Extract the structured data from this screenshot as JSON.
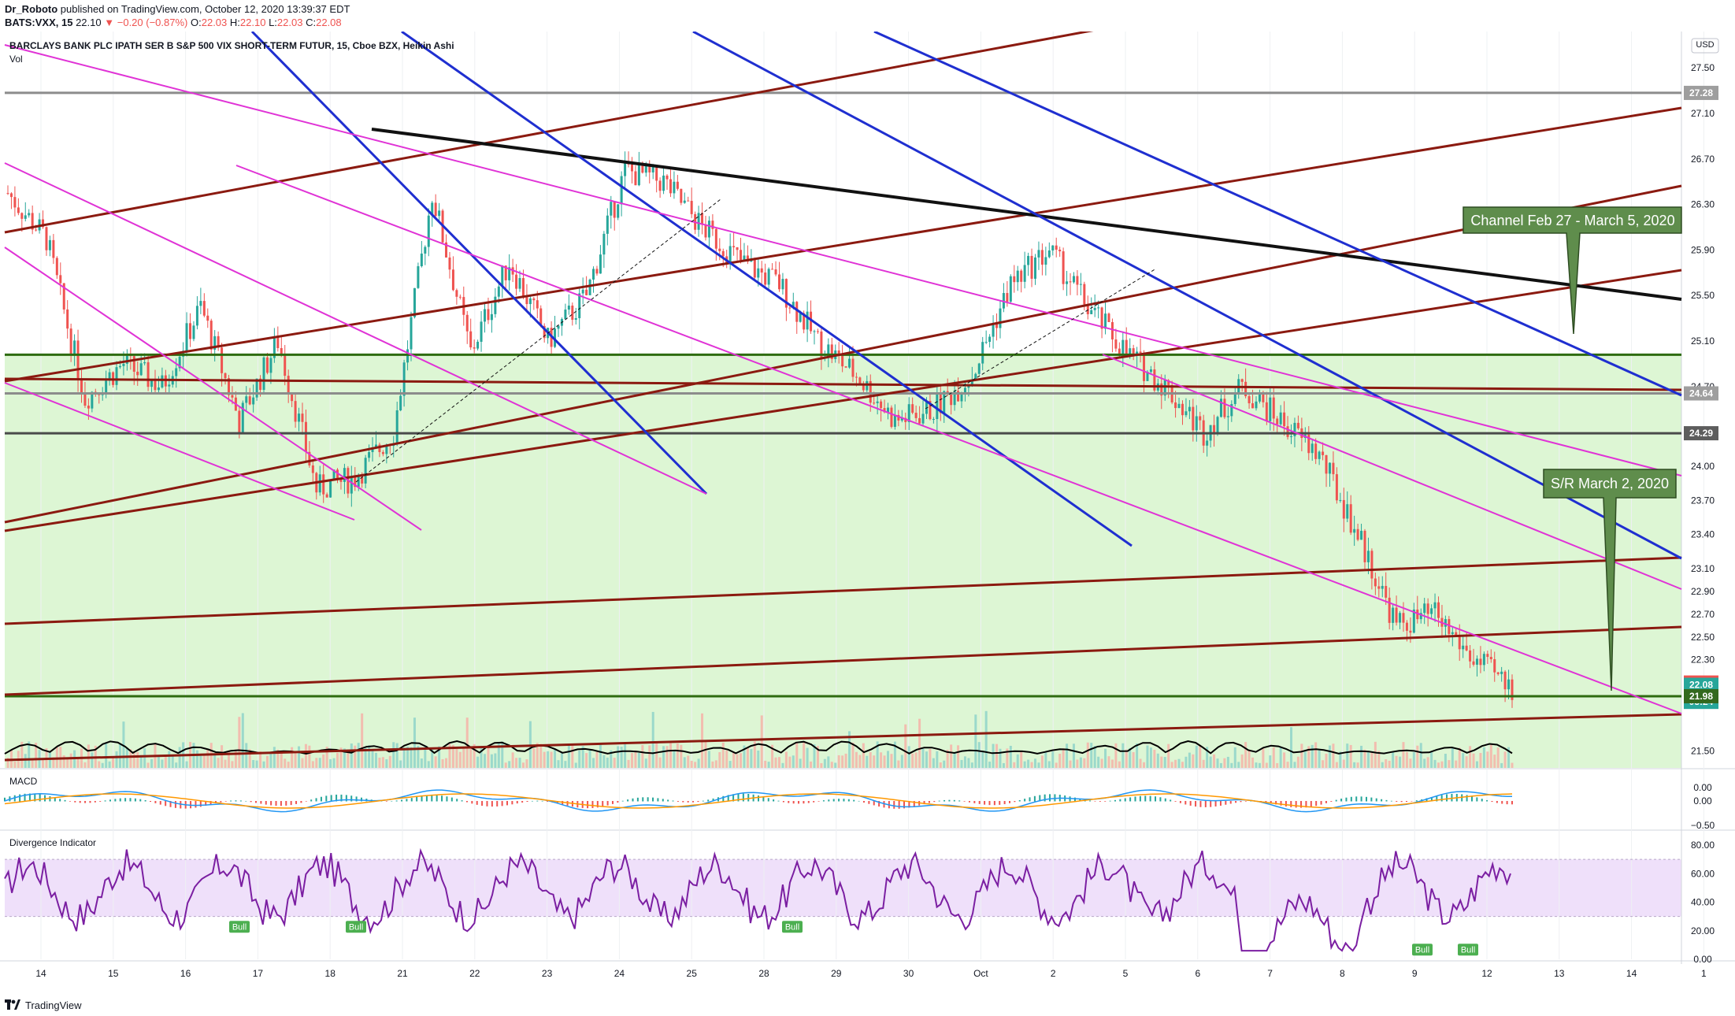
{
  "header": {
    "author": "Dr_Roboto",
    "published": "published on TradingView.com, October 12, 2020 13:39:37 EDT",
    "symbol": "BATS:VXX, 15",
    "last": "22.10",
    "change": "−0.20 (−0.87%)",
    "o_label": "O:",
    "o": "22.03",
    "h_label": "H:",
    "h": "22.10",
    "l_label": "L:",
    "l": "22.03",
    "c_label": "C:",
    "c": "22.08"
  },
  "chart_data": {
    "type": "candlestick",
    "title": "BARCLAYS BANK PLC IPATH SER B S&P 500 VIX SHORT-TERM FUTUR, 15, Cboe BZX, Heikin Ashi",
    "volume_label": "Vol",
    "currency": "USD",
    "x_ticks": [
      "14",
      "15",
      "16",
      "17",
      "18",
      "21",
      "22",
      "23",
      "24",
      "25",
      "28",
      "29",
      "30",
      "Oct",
      "2",
      "5",
      "6",
      "7",
      "8",
      "9",
      "12",
      "13",
      "14",
      "1"
    ],
    "y_ticks": [
      "27.50",
      "27.10",
      "26.70",
      "26.30",
      "25.90",
      "25.50",
      "25.10",
      "24.70",
      "24.00",
      "23.70",
      "23.40",
      "23.10",
      "22.90",
      "22.70",
      "22.50",
      "22.30",
      "21.50"
    ],
    "ylim": [
      21.35,
      27.75
    ],
    "price_labels": [
      {
        "text": "27.28",
        "value": 27.28,
        "color": "#9e9e9e"
      },
      {
        "text": "24.64",
        "value": 24.64,
        "color": "#9e9e9e"
      },
      {
        "text": "24.29",
        "value": 24.29,
        "color": "#5d5d5d"
      },
      {
        "text": "22.10",
        "value": 22.1,
        "color": "#ef5350"
      },
      {
        "text": "22.08",
        "value": 22.08,
        "color": "#26a69a"
      },
      {
        "text": "05:24",
        "value": 21.93,
        "color": "#26a69a"
      },
      {
        "text": "21.98",
        "value": 21.98,
        "color": "#33691e"
      }
    ],
    "horizontal_levels": [
      {
        "value": 27.28,
        "color": "#8c8c8c"
      },
      {
        "value": 24.98,
        "color": "#2e6b10"
      },
      {
        "value": 24.64,
        "color": "#8c8c8c"
      },
      {
        "value": 24.29,
        "color": "#4a4a4a"
      },
      {
        "value": 21.98,
        "color": "#2e6b10"
      }
    ],
    "shaded_zone": [
      21.35,
      24.98
    ],
    "annotations": [
      {
        "text": "Channel Feb 27 - March 5, 2020"
      },
      {
        "text": "S/R March 2, 2020"
      }
    ],
    "price_path": [
      [
        0,
        26.4
      ],
      [
        1,
        26.0
      ],
      [
        2,
        24.6
      ],
      [
        3,
        24.9
      ],
      [
        4,
        24.7
      ],
      [
        5,
        25.4
      ],
      [
        6,
        24.4
      ],
      [
        7,
        25.1
      ],
      [
        8,
        23.8
      ],
      [
        9,
        23.9
      ],
      [
        10,
        24.3
      ],
      [
        11,
        26.4
      ],
      [
        12,
        25.0
      ],
      [
        13,
        25.8
      ],
      [
        14,
        25.1
      ],
      [
        15,
        25.5
      ],
      [
        16,
        26.6
      ],
      [
        17,
        26.5
      ],
      [
        18,
        26.1
      ],
      [
        19,
        25.8
      ],
      [
        20,
        25.6
      ],
      [
        21,
        25.1
      ],
      [
        22,
        24.8
      ],
      [
        23,
        24.4
      ],
      [
        24,
        24.5
      ],
      [
        25,
        24.8
      ],
      [
        26,
        25.6
      ],
      [
        27,
        25.9
      ],
      [
        28,
        25.4
      ],
      [
        29,
        25.0
      ],
      [
        30,
        24.7
      ],
      [
        31,
        24.3
      ],
      [
        32,
        24.7
      ],
      [
        33,
        24.4
      ],
      [
        34,
        24.1
      ],
      [
        35,
        23.4
      ],
      [
        36,
        22.6
      ],
      [
        37,
        22.7
      ],
      [
        38,
        22.3
      ],
      [
        39,
        22.05
      ]
    ],
    "volume": {
      "label": "Vol"
    },
    "macd": {
      "label": "MACD",
      "y_ticks": [
        "0.00",
        "0.00",
        "−0.50"
      ]
    },
    "divergence": {
      "label": "Divergence Indicator",
      "y_ticks": [
        "80.00",
        "60.00",
        "40.00",
        "20.00",
        "0.00"
      ],
      "ylim": [
        0,
        85
      ],
      "band": [
        30,
        70
      ],
      "bull_labels": [
        "Bull",
        "Bull",
        "Bull",
        "Bull",
        "Bull"
      ]
    }
  },
  "footer": {
    "brand": "TradingView"
  }
}
